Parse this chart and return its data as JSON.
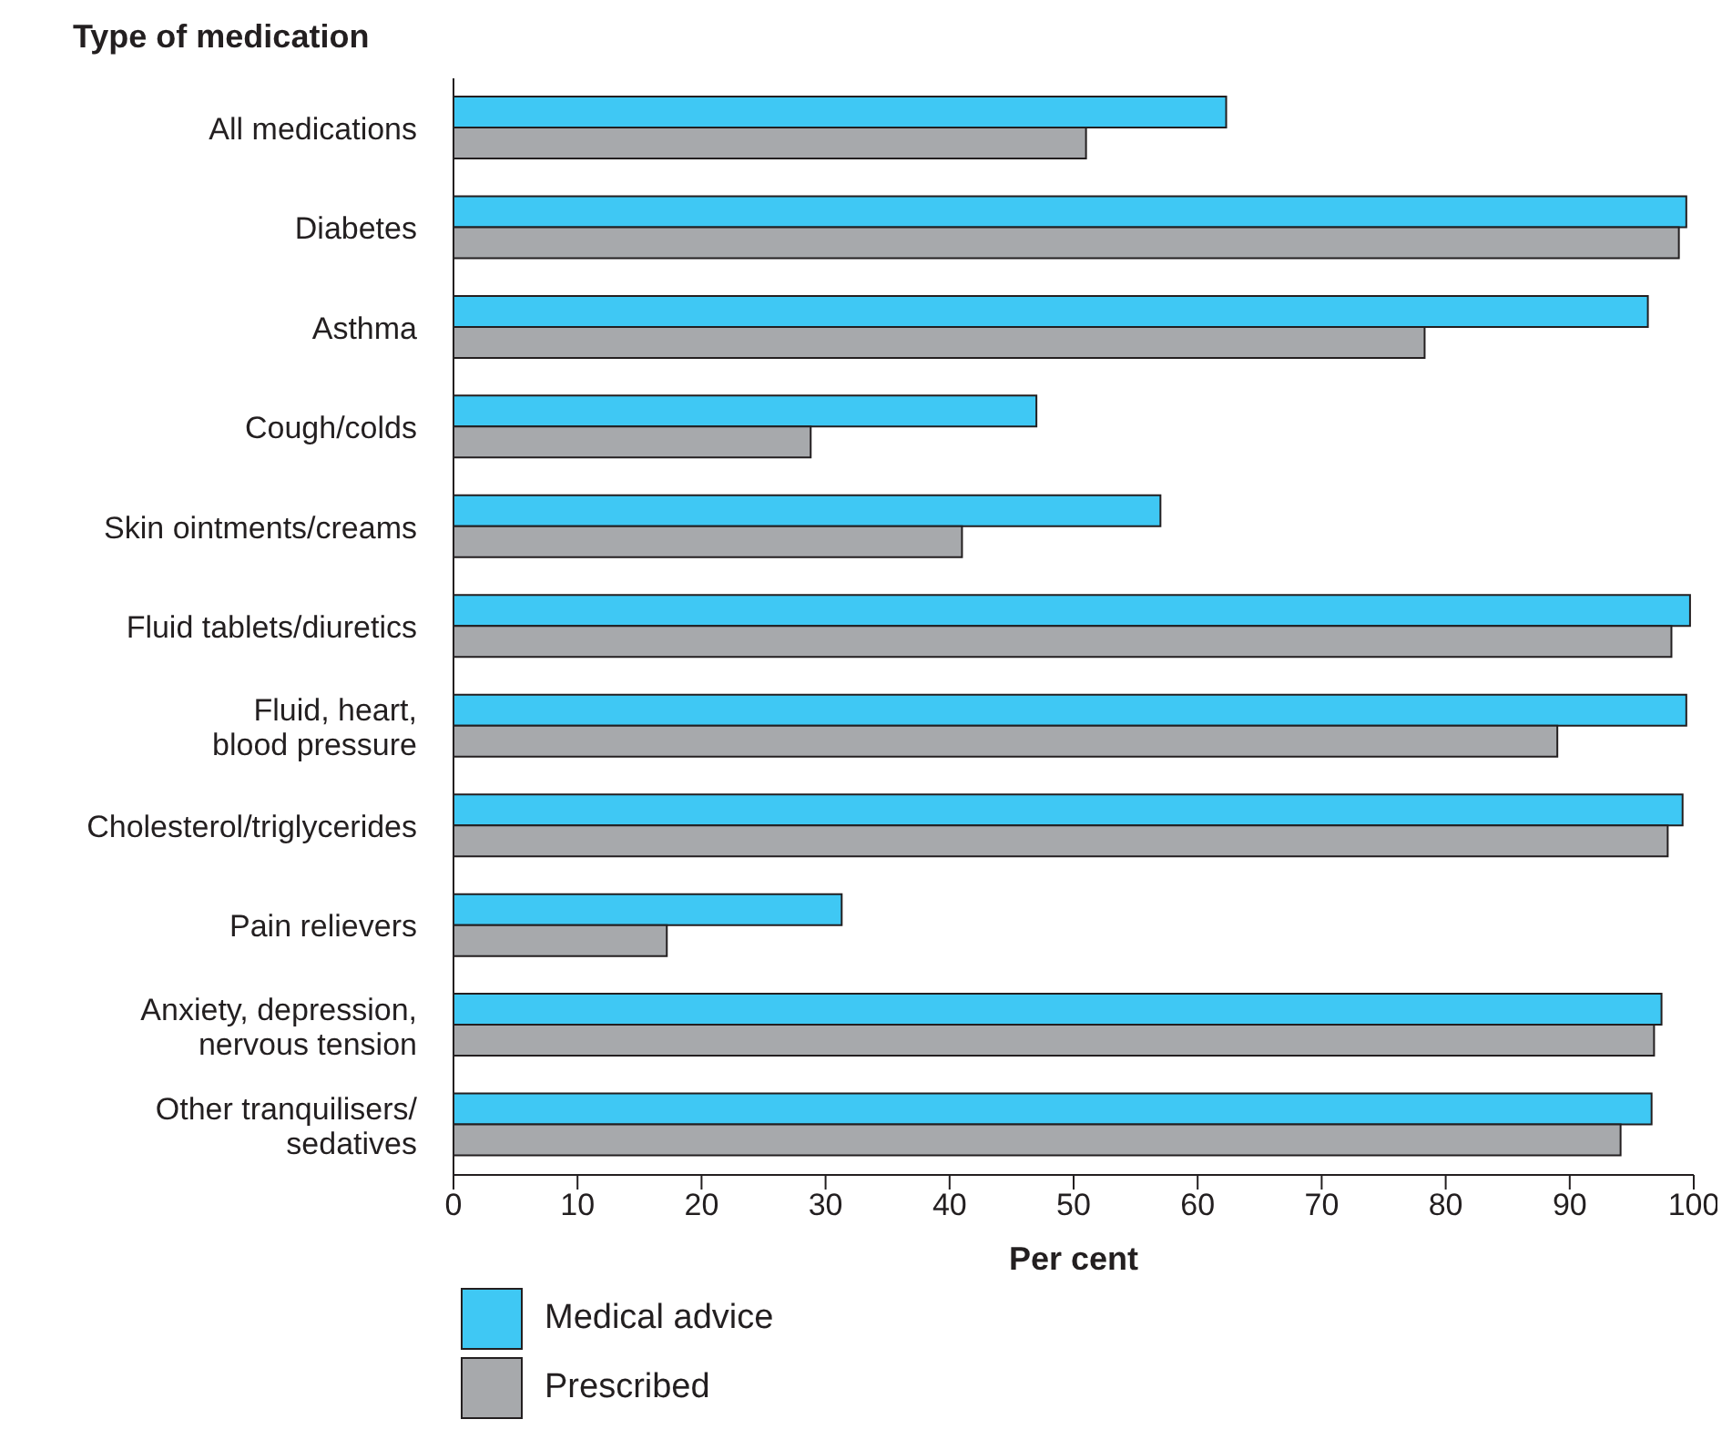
{
  "chart_data": {
    "type": "bar",
    "orientation": "horizontal",
    "ylabel": "Type of medication",
    "xlabel": "Per cent",
    "categories": [
      "All medications",
      "Diabetes",
      "Asthma",
      "Cough/colds",
      "Skin ointments/creams",
      "Fluid tablets/diuretics",
      "Fluid, heart, blood pressure",
      "Cholesterol/triglycerides",
      "Pain relievers",
      "Anxiety, depression, nervous tension",
      "Other tranquilisers/ sedatives"
    ],
    "series": [
      {
        "name": "Medical advice",
        "color": "#3fc8f4",
        "values": [
          62.3,
          99.4,
          96.3,
          47,
          57,
          99.7,
          99.4,
          99.1,
          31.3,
          97.4,
          96.6
        ]
      },
      {
        "name": "Prescribed",
        "color": "#a7a9ac",
        "values": [
          51,
          98.8,
          78.3,
          28.8,
          41,
          98.2,
          89,
          97.9,
          17.2,
          96.8,
          94.1
        ]
      }
    ],
    "xlim": [
      0,
      100
    ],
    "xticks": [
      0,
      10,
      20,
      30,
      40,
      50,
      60,
      70,
      80,
      90,
      100
    ],
    "grid": false,
    "legend": "bottom left"
  }
}
